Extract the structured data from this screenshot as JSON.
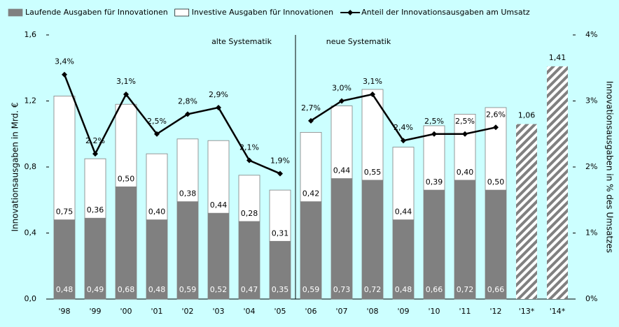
{
  "chart_data": {
    "type": "bar",
    "categories": [
      "'98",
      "'99",
      "'00",
      "'01",
      "'02",
      "'03",
      "'04",
      "'05",
      "'06",
      "'07",
      "'08",
      "'09",
      "'10",
      "'11",
      "'12",
      "'13*",
      "'14*"
    ],
    "series": [
      {
        "name": "Laufende Ausgaben für Innovationen",
        "color": "#808080",
        "values": [
          0.48,
          0.49,
          0.68,
          0.48,
          0.59,
          0.52,
          0.47,
          0.35,
          0.59,
          0.73,
          0.72,
          0.48,
          0.66,
          0.72,
          0.66,
          null,
          null
        ],
        "value_labels": [
          "0,48",
          "0,49",
          "0,68",
          "0,48",
          "0,59",
          "0,52",
          "0,47",
          "0,35",
          "0,59",
          "0,73",
          "0,72",
          "0,48",
          "0,66",
          "0,72",
          "0,66",
          null,
          null
        ]
      },
      {
        "name": "Investive Ausgaben für Innovationen",
        "color": "#ffffff",
        "values": [
          0.75,
          0.36,
          0.5,
          0.4,
          0.38,
          0.44,
          0.28,
          0.31,
          0.42,
          0.44,
          0.55,
          0.44,
          0.39,
          0.4,
          0.5,
          null,
          null
        ],
        "value_labels": [
          "0,75",
          "0,36",
          "0,50",
          "0,40",
          "0,38",
          "0,44",
          "0,28",
          "0,31",
          "0,42",
          "0,44",
          "0,55",
          "0,44",
          "0,39",
          "0,40",
          "0,50",
          null,
          null
        ]
      },
      {
        "color": "#808080",
        "hatched": true,
        "values": [
          null,
          null,
          null,
          null,
          null,
          null,
          null,
          null,
          null,
          null,
          null,
          null,
          null,
          null,
          null,
          1.06,
          1.41
        ],
        "value_labels": [
          null,
          null,
          null,
          null,
          null,
          null,
          null,
          null,
          null,
          null,
          null,
          null,
          null,
          null,
          null,
          "1,06",
          "1,41"
        ]
      },
      {
        "name": "Anteil der Innovationsausgaben am Umsatz",
        "color": "#000000",
        "type": "line",
        "axis": "y2",
        "values": [
          3.4,
          2.2,
          3.1,
          2.5,
          2.8,
          2.9,
          2.1,
          1.9,
          2.7,
          3.0,
          3.1,
          2.4,
          2.5,
          2.5,
          2.6,
          null,
          null
        ],
        "value_labels": [
          "3,4%",
          "2,2%",
          "3,1%",
          "2,5%",
          "2,8%",
          "2,9%",
          "2,1%",
          "1,9%",
          "2,7%",
          "3,0%",
          "3,1%",
          "2,4%",
          "2,5%",
          "2,5%",
          "2,6%",
          null,
          null
        ]
      }
    ],
    "ylabel": "Innovationsausgaben in Mrd. €",
    "y2label": "Innovationsausgaben in % des Umsatzes",
    "ylim": [
      0,
      1.6
    ],
    "yticks": [
      {
        "value": 0,
        "label": "0,0"
      },
      {
        "value": 0.4,
        "label": "0,4"
      },
      {
        "value": 0.8,
        "label": "0,8"
      },
      {
        "value": 1.2,
        "label": "1,2"
      },
      {
        "value": 1.6,
        "label": "1,6"
      }
    ],
    "y2lim": [
      0,
      4
    ],
    "y2ticks": [
      {
        "value": 0,
        "label": "0%"
      },
      {
        "value": 1,
        "label": "1%"
      },
      {
        "value": 2,
        "label": "2%"
      },
      {
        "value": 3,
        "label": "3%"
      },
      {
        "value": 4,
        "label": "4%"
      }
    ],
    "annotations": [
      "alte Systematik",
      "neue Systematik"
    ],
    "divider_before": "'06",
    "legend": "top"
  }
}
